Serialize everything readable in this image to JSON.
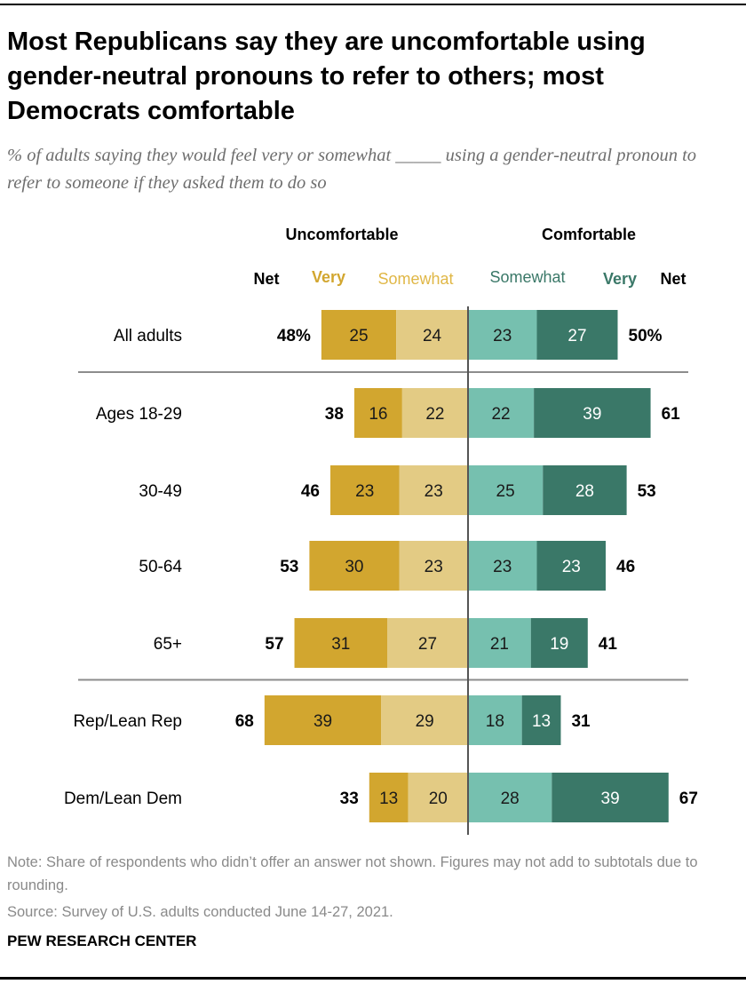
{
  "title": "Most Republicans say they are uncomfortable using gender-neutral pronouns to refer to others; most Democrats comfortable",
  "subtitle": "% of adults saying they would feel very or somewhat _____ using a gender-neutral pronoun to refer to someone if they asked them to do so",
  "note": "Note: Share of respondents who didn’t offer an answer not shown. Figures may not add to subtotals due to rounding.",
  "source": "Source: Survey of U.S. adults conducted June 14-27, 2021.",
  "brand": "PEW RESEARCH CENTER",
  "chart_data": {
    "type": "diverging-stacked-bar",
    "group_headers": {
      "left": "Uncomfortable",
      "right": "Comfortable"
    },
    "column_headers": {
      "left_net": "Net",
      "left_very": "Very",
      "left_somewhat": "Somewhat",
      "right_somewhat": "Somewhat",
      "right_very": "Very",
      "right_net": "Net"
    },
    "colors": {
      "unc_very": "#d2a62f",
      "unc_somewhat": "#e3cb84",
      "com_somewhat": "#76c0af",
      "com_very": "#3a7868"
    },
    "categories": [
      "All adults",
      "Ages 18-29",
      "30-49",
      "50-64",
      "65+",
      "Rep/Lean Rep",
      "Dem/Lean Dem"
    ],
    "series": [
      {
        "name": "Very",
        "side": "uncomfortable",
        "values": [
          25,
          16,
          23,
          30,
          31,
          39,
          13
        ]
      },
      {
        "name": "Somewhat",
        "side": "uncomfortable",
        "values": [
          24,
          22,
          23,
          23,
          27,
          29,
          20
        ]
      },
      {
        "name": "Somewhat",
        "side": "comfortable",
        "values": [
          23,
          22,
          25,
          23,
          21,
          18,
          28
        ]
      },
      {
        "name": "Very",
        "side": "comfortable",
        "values": [
          27,
          39,
          28,
          23,
          19,
          13,
          39
        ]
      }
    ],
    "net_uncomfortable": [
      "48%",
      "38",
      "46",
      "53",
      "57",
      "68",
      "33"
    ],
    "net_comfortable": [
      "50%",
      "61",
      "53",
      "46",
      "41",
      "31",
      "67"
    ],
    "separators_after": [
      0,
      4
    ]
  }
}
